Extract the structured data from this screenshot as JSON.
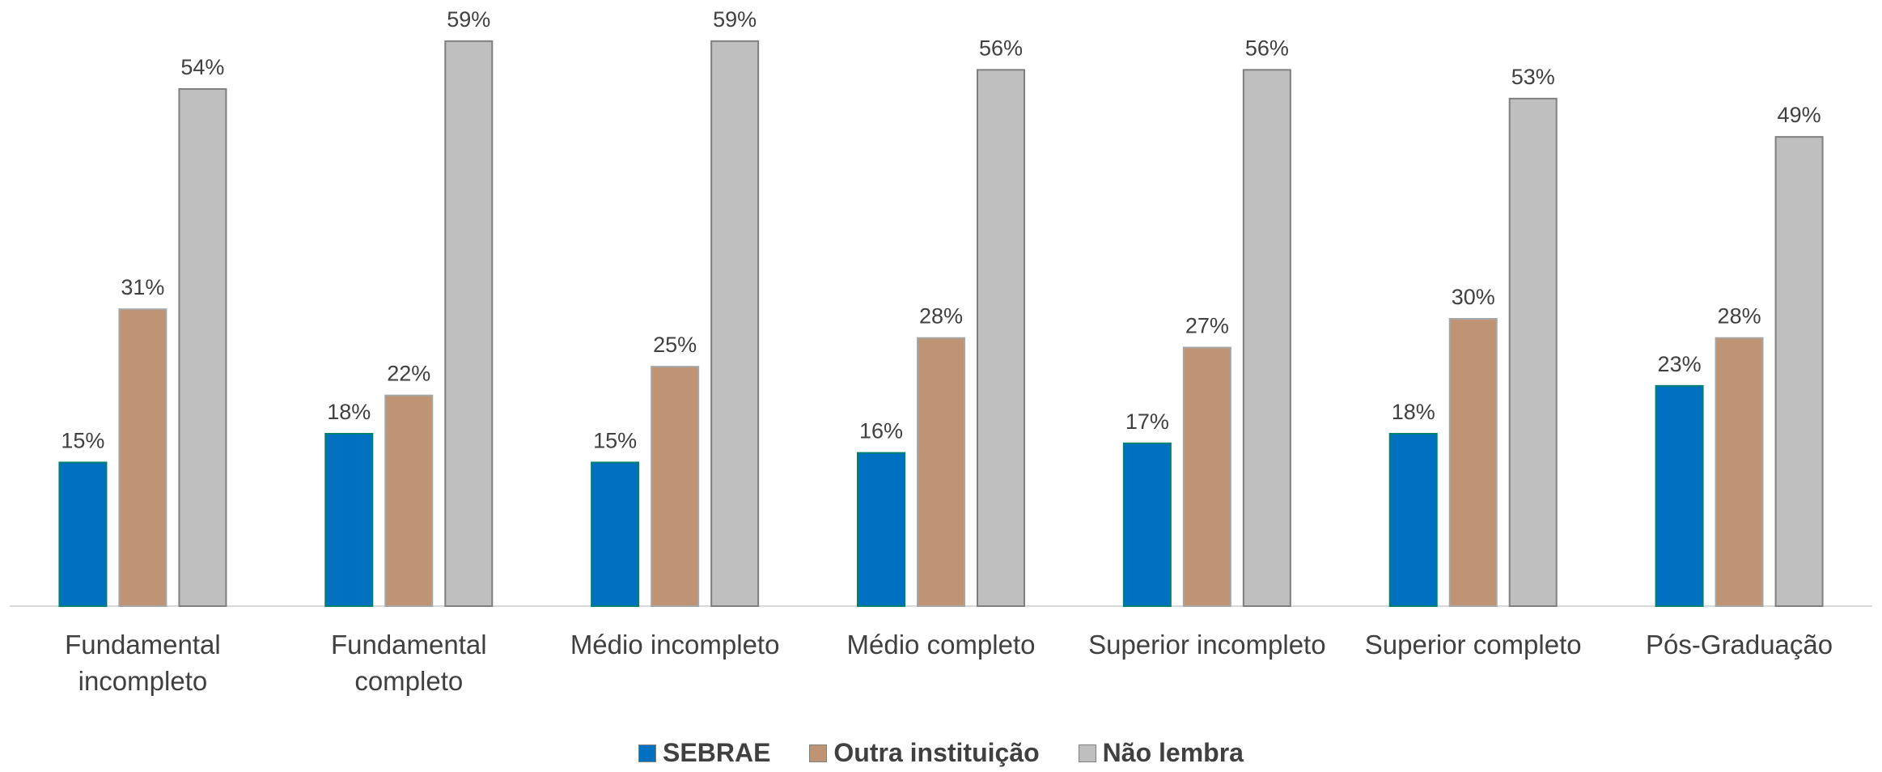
{
  "chart_data": {
    "type": "bar",
    "categories": [
      "Fundamental incompleto",
      "Fundamental completo",
      "Médio incompleto",
      "Médio completo",
      "Superior incompleto",
      "Superior completo",
      "Pós-Graduação"
    ],
    "series": [
      {
        "name": "SEBRAE",
        "color": "#0070c0",
        "values": [
          15,
          18,
          15,
          16,
          17,
          18,
          23
        ],
        "value_labels": [
          "15%",
          "18%",
          "15%",
          "16%",
          "17%",
          "18%",
          "23%"
        ]
      },
      {
        "name": "Outra instituição",
        "color": "#bf9474",
        "values": [
          31,
          22,
          25,
          28,
          27,
          30,
          28
        ],
        "value_labels": [
          "31%",
          "22%",
          "25%",
          "28%",
          "27%",
          "30%",
          "28%"
        ]
      },
      {
        "name": "Não lembra",
        "color": "#bfbfbf",
        "values": [
          54,
          59,
          59,
          56,
          56,
          53,
          49
        ],
        "value_labels": [
          "54%",
          "59%",
          "59%",
          "56%",
          "56%",
          "53%",
          "49%"
        ]
      }
    ],
    "ylim": [
      0,
      60
    ],
    "legend": "bottom"
  }
}
